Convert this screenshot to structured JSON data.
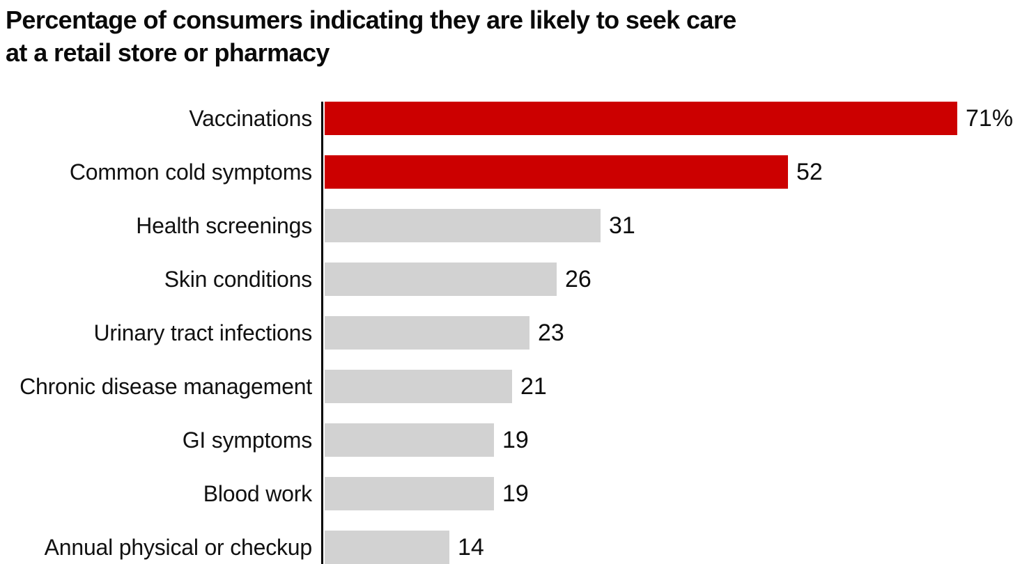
{
  "page": {
    "background": "#ffffff"
  },
  "title": {
    "line1": "Percentage of consumers indicating they are likely to seek care",
    "line2": "at a retail store or pharmacy"
  },
  "chart_data": {
    "type": "bar",
    "orientation": "horizontal",
    "title": "Percentage of consumers indicating they are likely to seek care at a retail store or pharmacy",
    "categories": [
      "Vaccinations",
      "Common cold symptoms",
      "Health screenings",
      "Skin conditions",
      "Urinary tract infections",
      "Chronic disease management",
      "GI symptoms",
      "Blood work",
      "Annual physical or checkup"
    ],
    "values": [
      71,
      52,
      31,
      26,
      23,
      21,
      19,
      19,
      14
    ],
    "value_labels": [
      "71%",
      "52",
      "31",
      "26",
      "23",
      "21",
      "19",
      "19",
      "14"
    ],
    "bar_colors": [
      "#cc0000",
      "#cc0000",
      "#d2d2d2",
      "#d2d2d2",
      "#d2d2d2",
      "#d2d2d2",
      "#d2d2d2",
      "#d2d2d2",
      "#d2d2d2"
    ],
    "highlight_color": "#cc0000",
    "default_color": "#d2d2d2",
    "axis_color": "#000000",
    "xlabel": "",
    "ylabel": "",
    "xlim": [
      0,
      76
    ],
    "grid": false,
    "legend": false,
    "value_label_position": "outside-end"
  }
}
